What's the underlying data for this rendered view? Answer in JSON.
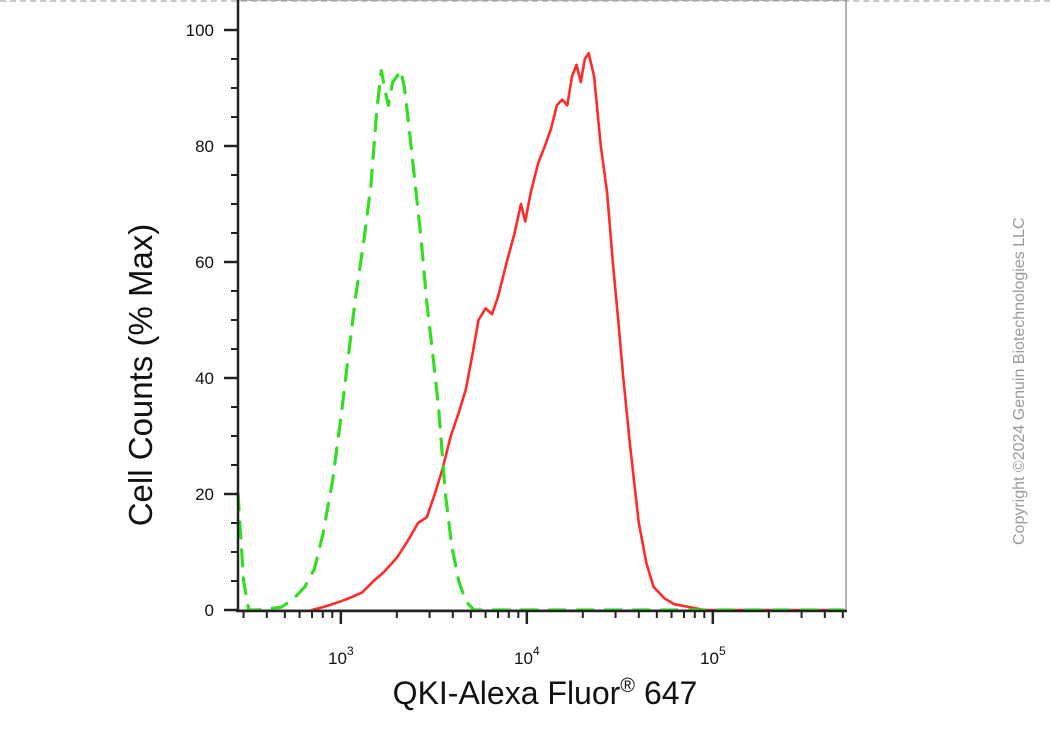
{
  "chart_data": {
    "type": "line",
    "xlabel": "QKI-Alexa Fluor",
    "xlabel_superscript": "®",
    "xlabel_suffix": " 647",
    "ylabel": "Cell Counts (% Max)",
    "x_scale": "log",
    "xlim": [
      280,
      520000
    ],
    "ylim": [
      0,
      105
    ],
    "y_ticks": [
      0,
      20,
      40,
      60,
      80,
      100
    ],
    "y_tick_labels": [
      "0",
      "20",
      "40",
      "60",
      "80",
      "100"
    ],
    "x_major_ticks": [
      {
        "value": 1000,
        "base": "10",
        "exp": "3"
      },
      {
        "value": 10000,
        "base": "10",
        "exp": "4"
      },
      {
        "value": 100000,
        "base": "10",
        "exp": "5"
      }
    ],
    "grid": false,
    "legend": "none",
    "series": [
      {
        "color": "#ff2a2a",
        "style": "solid",
        "points": [
          [
            700,
            0
          ],
          [
            800,
            0.5
          ],
          [
            900,
            1
          ],
          [
            1000,
            1.5
          ],
          [
            1100,
            2
          ],
          [
            1300,
            3
          ],
          [
            1500,
            5
          ],
          [
            1700,
            6.5
          ],
          [
            2000,
            9
          ],
          [
            2300,
            12
          ],
          [
            2600,
            15
          ],
          [
            2900,
            16
          ],
          [
            3200,
            20
          ],
          [
            3500,
            24
          ],
          [
            3900,
            30
          ],
          [
            4300,
            34
          ],
          [
            4700,
            38
          ],
          [
            5100,
            44
          ],
          [
            5500,
            50
          ],
          [
            6000,
            52
          ],
          [
            6500,
            51
          ],
          [
            7000,
            54
          ],
          [
            7800,
            60
          ],
          [
            8600,
            65
          ],
          [
            9300,
            70
          ],
          [
            9800,
            67
          ],
          [
            10500,
            72
          ],
          [
            11500,
            77
          ],
          [
            12500,
            80
          ],
          [
            13500,
            83
          ],
          [
            14500,
            87
          ],
          [
            15500,
            88
          ],
          [
            16500,
            87
          ],
          [
            17500,
            92
          ],
          [
            18500,
            94
          ],
          [
            19500,
            91
          ],
          [
            20500,
            95
          ],
          [
            21500,
            96
          ],
          [
            23000,
            92
          ],
          [
            25000,
            80
          ],
          [
            27000,
            72
          ],
          [
            29000,
            60
          ],
          [
            31000,
            50
          ],
          [
            33000,
            40
          ],
          [
            36000,
            28
          ],
          [
            40000,
            15
          ],
          [
            44000,
            8
          ],
          [
            48000,
            4
          ],
          [
            55000,
            2
          ],
          [
            62000,
            1
          ],
          [
            75000,
            0.5
          ],
          [
            90000,
            0
          ],
          [
            200000,
            0
          ],
          [
            500000,
            0
          ]
        ]
      },
      {
        "color": "#33dd22",
        "style": "dashed",
        "points": [
          [
            280,
            20
          ],
          [
            300,
            5
          ],
          [
            320,
            0
          ],
          [
            360,
            0
          ],
          [
            480,
            0.5
          ],
          [
            560,
            2
          ],
          [
            640,
            4
          ],
          [
            720,
            7
          ],
          [
            800,
            13
          ],
          [
            900,
            22
          ],
          [
            1000,
            33
          ],
          [
            1100,
            44
          ],
          [
            1200,
            54
          ],
          [
            1320,
            63
          ],
          [
            1450,
            73
          ],
          [
            1560,
            86
          ],
          [
            1650,
            93
          ],
          [
            1720,
            90
          ],
          [
            1800,
            87
          ],
          [
            1900,
            91
          ],
          [
            2000,
            92
          ],
          [
            2100,
            93
          ],
          [
            2200,
            90
          ],
          [
            2350,
            82
          ],
          [
            2500,
            74
          ],
          [
            2700,
            64
          ],
          [
            2900,
            53
          ],
          [
            3100,
            45
          ],
          [
            3350,
            35
          ],
          [
            3650,
            20
          ],
          [
            3950,
            11
          ],
          [
            4300,
            5
          ],
          [
            4700,
            1.5
          ],
          [
            5200,
            0
          ],
          [
            8000,
            0
          ],
          [
            60000,
            0
          ],
          [
            500000,
            0
          ]
        ]
      }
    ]
  },
  "watermark": "Copyright ©2024 Genuin Biotechnologies LLC"
}
